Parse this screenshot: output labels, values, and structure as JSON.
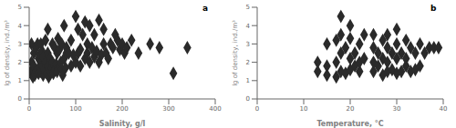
{
  "chart_data": [
    {
      "type": "scatter",
      "annotations": [
        "a"
      ],
      "xlabel": "Salinity, g/l",
      "ylabel": "lg of density, ind./m³",
      "xlim": [
        0,
        400
      ],
      "ylim": [
        0,
        5
      ],
      "xticks": [
        0,
        100,
        200,
        300,
        400
      ],
      "yticks": [
        0,
        1,
        2,
        3,
        4,
        5
      ],
      "marker": "diamond",
      "color": "#2a2a2a",
      "grid": false,
      "x": [
        3,
        5,
        5,
        8,
        10,
        10,
        12,
        15,
        15,
        18,
        18,
        20,
        20,
        22,
        22,
        25,
        25,
        25,
        28,
        28,
        30,
        30,
        32,
        35,
        35,
        38,
        40,
        40,
        40,
        42,
        45,
        45,
        48,
        50,
        50,
        52,
        55,
        55,
        58,
        60,
        60,
        62,
        65,
        65,
        68,
        70,
        70,
        72,
        75,
        75,
        78,
        80,
        80,
        85,
        90,
        90,
        95,
        100,
        100,
        105,
        105,
        110,
        110,
        115,
        120,
        120,
        125,
        125,
        130,
        130,
        135,
        140,
        140,
        145,
        150,
        150,
        155,
        160,
        160,
        165,
        170,
        175,
        180,
        185,
        190,
        195,
        200,
        205,
        210,
        220,
        235,
        260,
        280,
        310,
        340
      ],
      "values": [
        1.5,
        2.0,
        3.0,
        1.2,
        1.8,
        2.5,
        1.3,
        1.5,
        2.8,
        1.6,
        3.0,
        1.4,
        2.2,
        1.7,
        2.4,
        1.5,
        2.0,
        3.0,
        1.8,
        2.6,
        1.3,
        2.3,
        1.6,
        2.0,
        3.2,
        1.4,
        1.8,
        2.5,
        3.8,
        1.2,
        1.5,
        2.2,
        1.7,
        2.0,
        3.0,
        1.4,
        1.6,
        2.8,
        1.9,
        1.5,
        2.5,
        3.3,
        1.8,
        2.7,
        2.0,
        1.6,
        3.0,
        1.3,
        2.2,
        4.0,
        1.7,
        2.8,
        2.5,
        2.5,
        1.8,
        3.2,
        2.4,
        2.0,
        4.5,
        2.5,
        3.8,
        1.8,
        2.7,
        3.5,
        2.2,
        4.2,
        2.5,
        3.0,
        2.0,
        4.0,
        2.8,
        2.3,
        3.5,
        2.6,
        2.0,
        4.3,
        2.4,
        3.0,
        3.8,
        2.5,
        2.2,
        3.0,
        2.8,
        3.5,
        3.2,
        2.7,
        3.0,
        2.5,
        2.8,
        3.2,
        2.5,
        3.0,
        2.8,
        1.4,
        2.8
      ]
    },
    {
      "type": "scatter",
      "annotations": [
        "b"
      ],
      "xlabel": "Temperature, °C",
      "ylabel": "lg of density, ind./m³",
      "xlim": [
        0,
        40
      ],
      "ylim": [
        0,
        5
      ],
      "xticks": [
        0,
        10,
        20,
        30,
        40
      ],
      "yticks": [
        0,
        1,
        2,
        3,
        4,
        5
      ],
      "marker": "diamond",
      "color": "#2a2a2a",
      "grid": false,
      "x": [
        13,
        13,
        15,
        15,
        15,
        17,
        17,
        17,
        18,
        18,
        18,
        18,
        19,
        19,
        20,
        20,
        20,
        20,
        21,
        21,
        22,
        22,
        22,
        23,
        23,
        25,
        25,
        25,
        25,
        26,
        26,
        27,
        27,
        27,
        28,
        28,
        28,
        28,
        29,
        29,
        30,
        30,
        30,
        30,
        31,
        31,
        32,
        32,
        32,
        33,
        33,
        34,
        34,
        35,
        35,
        36,
        37,
        38,
        39
      ],
      "values": [
        2.0,
        1.5,
        1.3,
        1.8,
        3.0,
        1.2,
        2.0,
        3.2,
        1.5,
        2.5,
        3.5,
        4.5,
        1.4,
        2.8,
        1.6,
        2.2,
        3.3,
        4.0,
        1.8,
        2.5,
        1.5,
        2.0,
        3.0,
        2.2,
        3.5,
        1.5,
        2.0,
        2.8,
        3.5,
        1.8,
        2.5,
        1.3,
        2.2,
        3.2,
        1.5,
        2.0,
        2.8,
        3.5,
        1.6,
        2.5,
        1.4,
        2.2,
        3.0,
        3.8,
        1.5,
        2.5,
        1.8,
        2.2,
        3.2,
        1.5,
        2.8,
        1.6,
        2.5,
        1.8,
        3.0,
        2.5,
        2.8,
        2.8,
        2.8
      ]
    }
  ]
}
